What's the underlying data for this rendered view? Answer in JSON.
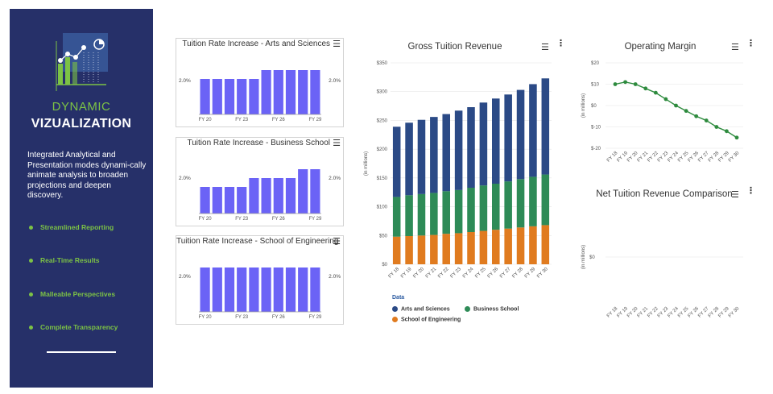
{
  "sidebar": {
    "brand_line1": "DYNAMIC",
    "brand_line2": "VIZUALIZATION",
    "description": "Integrated Analytical and Presentation modes dynami-cally animate analysis to broaden projections and deepen discovery.",
    "features": [
      "Streamlined Reporting",
      "Real-Time Results",
      "Malleable Perspectives",
      "Complete Transparency"
    ]
  },
  "panels": [
    {
      "title": "Tuition Rate Increase - Arts and Sciences",
      "left_label": "2.0%",
      "right_label": "2.0%",
      "ticks": [
        "FY 20",
        "FY 23",
        "FY 26",
        "FY 29"
      ],
      "values": [
        2.0,
        2.0,
        2.0,
        2.0,
        2.0,
        2.5,
        2.5,
        2.5,
        2.5,
        2.5
      ]
    },
    {
      "title": "Tuition Rate Increase - Business School",
      "left_label": "2.0%",
      "right_label": "2.0%",
      "ticks": [
        "FY 20",
        "FY 23",
        "FY 26",
        "FY 29"
      ],
      "values": [
        1.5,
        1.5,
        1.5,
        1.5,
        2.0,
        2.0,
        2.0,
        2.0,
        2.5,
        2.5
      ]
    },
    {
      "title": "Tuition Rate Increase - School of Engineering",
      "left_label": "2.0%",
      "right_label": "2.0%",
      "ticks": [
        "FY 20",
        "FY 23",
        "FY 26",
        "FY 29"
      ],
      "values": [
        2.5,
        2.5,
        2.5,
        2.5,
        2.5,
        2.5,
        2.5,
        2.5,
        2.5,
        2.5
      ]
    }
  ],
  "chart_data": [
    {
      "type": "bar",
      "title": "Gross Tuition Revenue",
      "ylabel": "(in millions)",
      "ylim": [
        0,
        350
      ],
      "yticks": [
        "$0",
        "$50",
        "$100",
        "$150",
        "$200",
        "$250",
        "$300",
        "$350"
      ],
      "categories": [
        "FY 18",
        "FY 19",
        "FY 20",
        "FY 21",
        "FY 22",
        "FY 23",
        "FY 24",
        "FY 25",
        "FY 26",
        "FY 27",
        "FY 28",
        "FY 29",
        "FY 30"
      ],
      "stacked": true,
      "series": [
        {
          "name": "School of Engineering",
          "color": "#e07b1f",
          "values": [
            48,
            49,
            50,
            51,
            53,
            54,
            56,
            58,
            60,
            62,
            64,
            66,
            68
          ]
        },
        {
          "name": "Business School",
          "color": "#2e8b57",
          "values": [
            69,
            71,
            72,
            73,
            74,
            75,
            77,
            79,
            80,
            82,
            84,
            86,
            88
          ]
        },
        {
          "name": "Arts and Sciences",
          "color": "#2b4a86",
          "values": [
            122,
            126,
            129,
            132,
            134,
            138,
            140,
            144,
            148,
            151,
            155,
            161,
            167
          ]
        }
      ],
      "legend_title": "Data",
      "legend": [
        "Arts and Sciences",
        "Business School",
        "School of Engineering"
      ]
    },
    {
      "type": "line",
      "title": "Operating Margin",
      "ylabel": "(in millions)",
      "ylim": [
        -20,
        20
      ],
      "yticks": [
        "$-20",
        "$-10",
        "$0",
        "$10",
        "$20"
      ],
      "categories": [
        "FY 18",
        "FY 19",
        "FY 20",
        "FY 21",
        "FY 22",
        "FY 23",
        "FY 24",
        "FY 25",
        "FY 26",
        "FY 27",
        "FY 28",
        "FY 29",
        "FY 30"
      ],
      "series": [
        {
          "name": "Operating Margin",
          "color": "#2e8b3e",
          "values": [
            10,
            11,
            10,
            8,
            6,
            3,
            0,
            -2.5,
            -5,
            -7,
            -10,
            -12,
            -15
          ]
        }
      ]
    },
    {
      "type": "line",
      "title": "Net Tuition Revenue Comparison",
      "ylabel": "(in millions)",
      "yticks": [
        "$0"
      ],
      "categories": [
        "FY 18",
        "FY 19",
        "FY 20",
        "FY 21",
        "FY 22",
        "FY 23",
        "FY 24",
        "FY 25",
        "FY 26",
        "FY 27",
        "FY 28",
        "FY 29",
        "FY 30"
      ],
      "series": []
    }
  ],
  "colors": {
    "sidebar_bg": "#263069",
    "accent": "#7cc245",
    "panel_bar": "#6b63f6"
  }
}
